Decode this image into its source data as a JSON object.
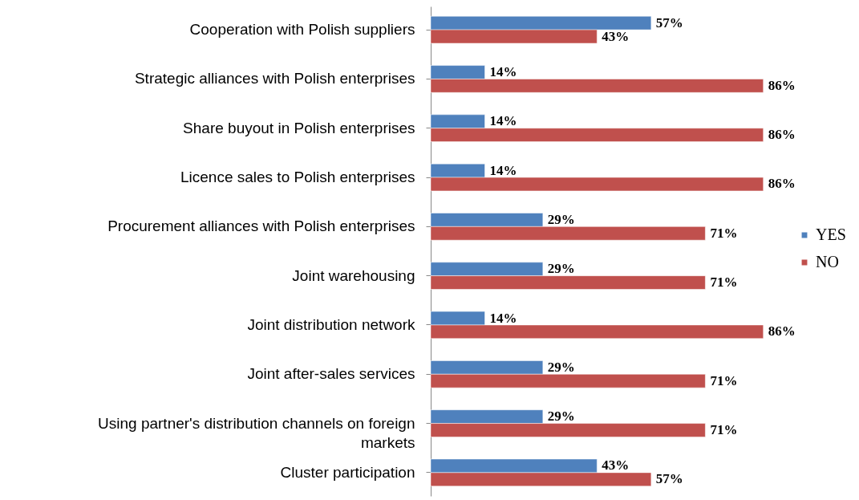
{
  "chart_data": {
    "type": "bar",
    "orientation": "horizontal",
    "legend": "right",
    "categories": [
      "Cooperation with Polish suppliers",
      "Strategic alliances with Polish enterprises",
      "Share buyout in Polish enterprises",
      "Licence sales to Polish enterprises",
      "Procurement alliances with Polish enterprises",
      "Joint warehousing",
      "Joint distribution network",
      "Joint after-sales services",
      "Using partner's distribution channels on foreign markets",
      "Cluster participation"
    ],
    "series": [
      {
        "name": "YES",
        "color": "#4f81bd",
        "values": [
          57,
          14,
          14,
          14,
          29,
          29,
          14,
          29,
          29,
          43
        ],
        "value_labels": [
          "57%",
          "14%",
          "14%",
          "14%",
          "29%",
          "29%",
          "14%",
          "29%",
          "29%",
          "43%"
        ]
      },
      {
        "name": "NO",
        "color": "#c0504d",
        "values": [
          43,
          86,
          86,
          86,
          71,
          71,
          86,
          71,
          71,
          57
        ],
        "value_labels": [
          "43%",
          "86%",
          "86%",
          "86%",
          "71%",
          "71%",
          "86%",
          "71%",
          "71%",
          "57%"
        ]
      }
    ]
  }
}
